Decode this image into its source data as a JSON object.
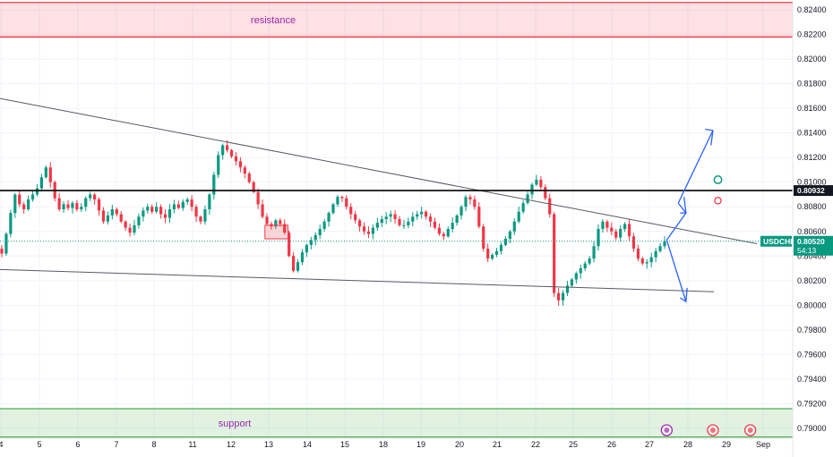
{
  "chart_data": {
    "type": "candlestick",
    "symbol": "USDCHF",
    "y_ticks": [
      "0.82400",
      "0.82200",
      "0.82000",
      "0.81800",
      "0.81600",
      "0.81400",
      "0.81200",
      "0.81000",
      "0.80800",
      "0.80600",
      "0.80400",
      "0.80200",
      "0.80000",
      "0.79800",
      "0.79600",
      "0.79400",
      "0.79200",
      "0.79000"
    ],
    "ylim": [
      0.7892,
      0.8248
    ],
    "x_ticks": [
      "4",
      "5",
      "6",
      "7",
      "8",
      "11",
      "12",
      "13",
      "14",
      "15",
      "18",
      "19",
      "20",
      "21",
      "22",
      "25",
      "26",
      "27",
      "28",
      "29",
      "Sep"
    ],
    "zones": [
      {
        "label": "resistance",
        "from": 0.8218,
        "to": 0.8246,
        "color": "#f23645"
      },
      {
        "label": "support",
        "from": 0.7893,
        "to": 0.7916,
        "color": "#4caf50"
      }
    ],
    "level_line": {
      "value": 0.80932,
      "label": "0.80932"
    },
    "current_price": {
      "value": 0.8052,
      "label": "0.80520",
      "countdown": "54:13"
    },
    "trendlines": [
      {
        "from": [
          0,
          0.8168
        ],
        "to": [
          845,
          0.805
        ]
      },
      {
        "from": [
          0,
          0.8029
        ],
        "to": [
          797,
          0.8011
        ]
      }
    ],
    "highlight_box": {
      "from_day": "12.9",
      "to_day": "13.5",
      "from": 0.8054,
      "to": 0.8065
    },
    "closes": [
      0.8042,
      0.8058,
      0.8075,
      0.809,
      0.8082,
      0.8078,
      0.8086,
      0.809,
      0.8095,
      0.8104,
      0.8112,
      0.81,
      0.8087,
      0.8078,
      0.8082,
      0.8079,
      0.8083,
      0.8078,
      0.808,
      0.8087,
      0.809,
      0.8086,
      0.8077,
      0.8068,
      0.8073,
      0.8078,
      0.8074,
      0.8068,
      0.8063,
      0.8059,
      0.8065,
      0.8072,
      0.8077,
      0.808,
      0.8076,
      0.808,
      0.8074,
      0.8071,
      0.8078,
      0.8082,
      0.8079,
      0.8084,
      0.8086,
      0.808,
      0.8072,
      0.8068,
      0.8078,
      0.809,
      0.8106,
      0.8122,
      0.813,
      0.8126,
      0.8121,
      0.8117,
      0.8112,
      0.8107,
      0.81,
      0.8092,
      0.8082,
      0.8072,
      0.8066,
      0.8064,
      0.8069,
      0.8066,
      0.8059,
      0.804,
      0.8028,
      0.8035,
      0.8043,
      0.8049,
      0.8053,
      0.8057,
      0.8062,
      0.8068,
      0.8075,
      0.8082,
      0.8088,
      0.8087,
      0.808,
      0.8074,
      0.8069,
      0.8064,
      0.806,
      0.8058,
      0.8063,
      0.8067,
      0.807,
      0.8072,
      0.8074,
      0.807,
      0.8065,
      0.8065,
      0.8068,
      0.8072,
      0.8074,
      0.8076,
      0.8072,
      0.8068,
      0.8063,
      0.8058,
      0.8056,
      0.8062,
      0.8067,
      0.8073,
      0.808,
      0.8088,
      0.8086,
      0.808,
      0.8064,
      0.8046,
      0.8038,
      0.8041,
      0.8044,
      0.8049,
      0.8054,
      0.806,
      0.8068,
      0.8076,
      0.8083,
      0.809,
      0.8098,
      0.8102,
      0.8096,
      0.8087,
      0.8074,
      0.801,
      0.8004,
      0.801,
      0.8016,
      0.8021,
      0.8026,
      0.803,
      0.8034,
      0.8038,
      0.8048,
      0.8062,
      0.8068,
      0.8063,
      0.806,
      0.8055,
      0.8062,
      0.8066,
      0.8056,
      0.8046,
      0.8038,
      0.8034,
      0.8035,
      0.8039,
      0.8044,
      0.8048,
      0.8052
    ]
  }
}
